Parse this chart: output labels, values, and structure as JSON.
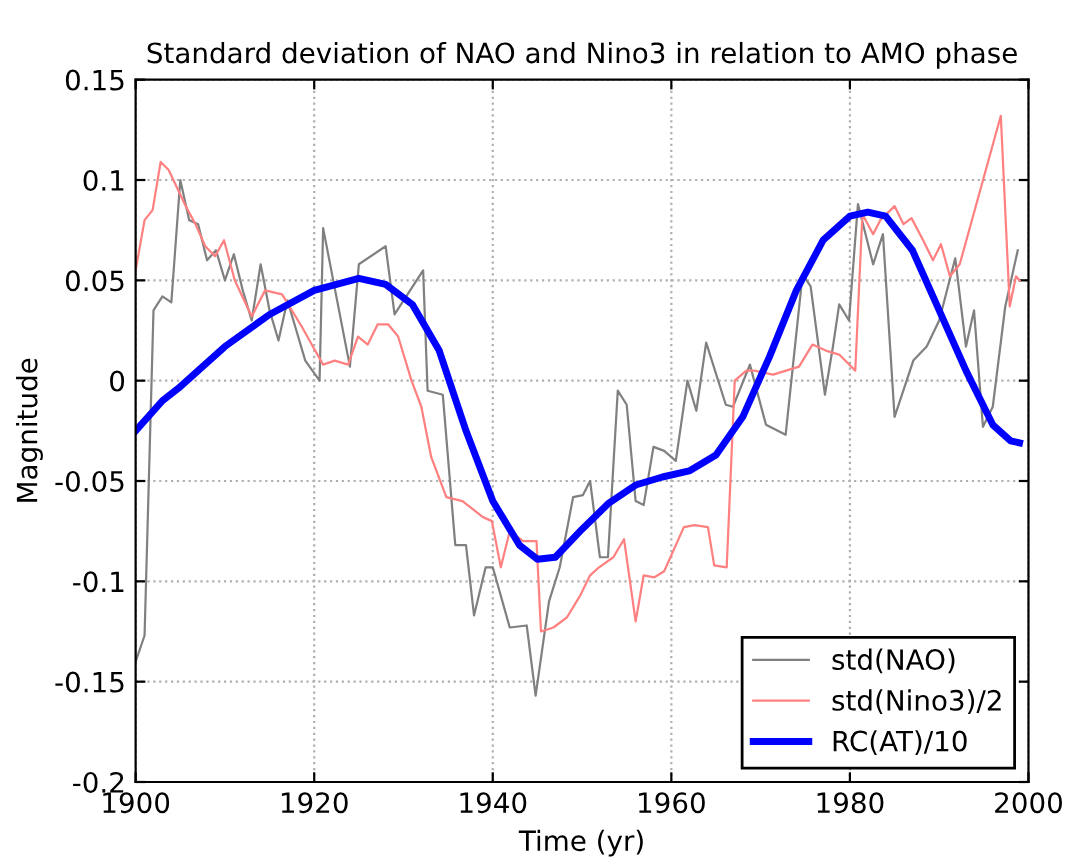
{
  "chart_data": {
    "type": "line",
    "title": "Standard deviation of NAO and Nino3 in relation to AMO phase",
    "xlabel": "Time (yr)",
    "ylabel": "Magnitude",
    "xlim": [
      1900,
      2000
    ],
    "xticks": [
      1900,
      1920,
      1940,
      1960,
      1980,
      2000
    ],
    "ylim": [
      -0.2,
      0.15
    ],
    "yticks": [
      -0.2,
      -0.15,
      -0.1,
      -0.05,
      0,
      0.05,
      0.1,
      0.15
    ],
    "grid": true,
    "legend": "bottom right",
    "series": [
      {
        "name": "std(NAO)",
        "color": "#808080",
        "x": [
          1900,
          1901,
          1901.6,
          1902,
          1903,
          1904,
          1905,
          1906,
          1907,
          1908,
          1909,
          1910,
          1911,
          1912,
          1913,
          1914,
          1915,
          1916,
          1917,
          1918,
          1919,
          1920.6,
          1921,
          1924,
          1925,
          1928,
          1929,
          1932.2,
          1932.7,
          1934.4,
          1935.8,
          1937,
          1937.9,
          1939.2,
          1940,
          1941.9,
          1943.8,
          1944.8,
          1946.3,
          1947.5,
          1949,
          1950.1,
          1950.9,
          1952,
          1952.9,
          1954,
          1955,
          1956,
          1956.9,
          1958,
          1959.2,
          1960.5,
          1961.8,
          1962.8,
          1963.9,
          1966.1,
          1966.9,
          1968.8,
          1970.6,
          1972.8,
          1974.7,
          1975.6,
          1977.2,
          1978.1,
          1978.8,
          1979.9,
          1980.9,
          1982.6,
          1983.7,
          1985,
          1987.1,
          1988.6,
          1990,
          1991.8,
          1993,
          1993.9,
          1994.9,
          1996,
          1997.4,
          1998.8
        ],
        "values": [
          -0.14,
          -0.127,
          -0.03,
          0.035,
          0.042,
          0.039,
          0.1,
          0.08,
          0.078,
          0.06,
          0.065,
          0.05,
          0.063,
          0.045,
          0.03,
          0.058,
          0.035,
          0.02,
          0.04,
          0.025,
          0.01,
          0.0,
          0.076,
          0.007,
          0.058,
          0.067,
          0.033,
          0.055,
          -0.005,
          -0.007,
          -0.082,
          -0.082,
          -0.117,
          -0.093,
          -0.093,
          -0.123,
          -0.122,
          -0.157,
          -0.11,
          -0.093,
          -0.058,
          -0.057,
          -0.05,
          -0.088,
          -0.088,
          -0.005,
          -0.012,
          -0.06,
          -0.062,
          -0.033,
          -0.035,
          -0.04,
          0.0,
          -0.015,
          0.019,
          -0.012,
          -0.013,
          0.008,
          -0.022,
          -0.027,
          0.053,
          0.047,
          -0.007,
          0.017,
          0.038,
          0.03,
          0.088,
          0.058,
          0.073,
          -0.018,
          0.01,
          0.017,
          0.03,
          0.061,
          0.017,
          0.035,
          -0.023,
          -0.013,
          0.037,
          0.065
        ]
      },
      {
        "name": "std(Nino3)/2",
        "color": "#ff8080",
        "x": [
          1900,
          1901,
          1901.9,
          1902.8,
          1903.7,
          1905.6,
          1906.7,
          1907.8,
          1908.9,
          1909.9,
          1911.1,
          1913,
          1914.5,
          1916.4,
          1918.6,
          1920.1,
          1921,
          1922.3,
          1923.8,
          1924.9,
          1926,
          1927.1,
          1928.3,
          1929.4,
          1930.9,
          1932,
          1933.1,
          1934.8,
          1936.6,
          1938.9,
          1939.9,
          1940.9,
          1941.9,
          1943.4,
          1944.9,
          1945.4,
          1946.8,
          1948.3,
          1949.8,
          1950.9,
          1951.9,
          1953.5,
          1954.7,
          1956,
          1956.9,
          1958.1,
          1959.2,
          1961.4,
          1962.6,
          1964.1,
          1964.8,
          1966.2,
          1967.1,
          1968.4,
          1969.3,
          1971.4,
          1974.3,
          1975.8,
          1977.3,
          1978.8,
          1980.6,
          1981.4,
          1982.6,
          1983.4,
          1985,
          1986,
          1986.9,
          1988.2,
          1989.3,
          1990.2,
          1991.2,
          1992.3,
          1996.9,
          1997.9,
          1998.6,
          1999
        ],
        "values": [
          0.055,
          0.08,
          0.085,
          0.109,
          0.105,
          0.087,
          0.078,
          0.067,
          0.062,
          0.07,
          0.05,
          0.032,
          0.045,
          0.043,
          0.027,
          0.015,
          0.008,
          0.01,
          0.008,
          0.022,
          0.018,
          0.028,
          0.028,
          0.022,
          0.0,
          -0.013,
          -0.038,
          -0.058,
          -0.06,
          -0.068,
          -0.07,
          -0.093,
          -0.075,
          -0.08,
          -0.08,
          -0.125,
          -0.123,
          -0.118,
          -0.107,
          -0.097,
          -0.093,
          -0.088,
          -0.079,
          -0.12,
          -0.097,
          -0.098,
          -0.095,
          -0.073,
          -0.072,
          -0.073,
          -0.092,
          -0.093,
          0.0,
          0.005,
          0.005,
          0.003,
          0.007,
          0.018,
          0.015,
          0.013,
          0.005,
          0.083,
          0.073,
          0.08,
          0.087,
          0.078,
          0.081,
          0.07,
          0.06,
          0.068,
          0.052,
          0.058,
          0.132,
          0.037,
          0.052,
          0.05
        ]
      },
      {
        "name": "RC(AT)/10",
        "color": "#0000ff",
        "x": [
          1900,
          1903,
          1905,
          1910,
          1915,
          1920,
          1925,
          1928,
          1931,
          1934,
          1937,
          1940,
          1943,
          1945,
          1947,
          1950,
          1953,
          1956,
          1959,
          1962,
          1965,
          1968,
          1971,
          1974,
          1977,
          1980,
          1982,
          1984,
          1987,
          1990,
          1993,
          1996,
          1998,
          1999
        ],
        "values": [
          -0.025,
          -0.01,
          -0.003,
          0.017,
          0.033,
          0.045,
          0.051,
          0.048,
          0.038,
          0.015,
          -0.025,
          -0.06,
          -0.082,
          -0.089,
          -0.088,
          -0.074,
          -0.061,
          -0.052,
          -0.048,
          -0.045,
          -0.037,
          -0.018,
          0.012,
          0.045,
          0.07,
          0.082,
          0.084,
          0.082,
          0.065,
          0.035,
          0.005,
          -0.022,
          -0.03,
          -0.031
        ]
      }
    ]
  }
}
